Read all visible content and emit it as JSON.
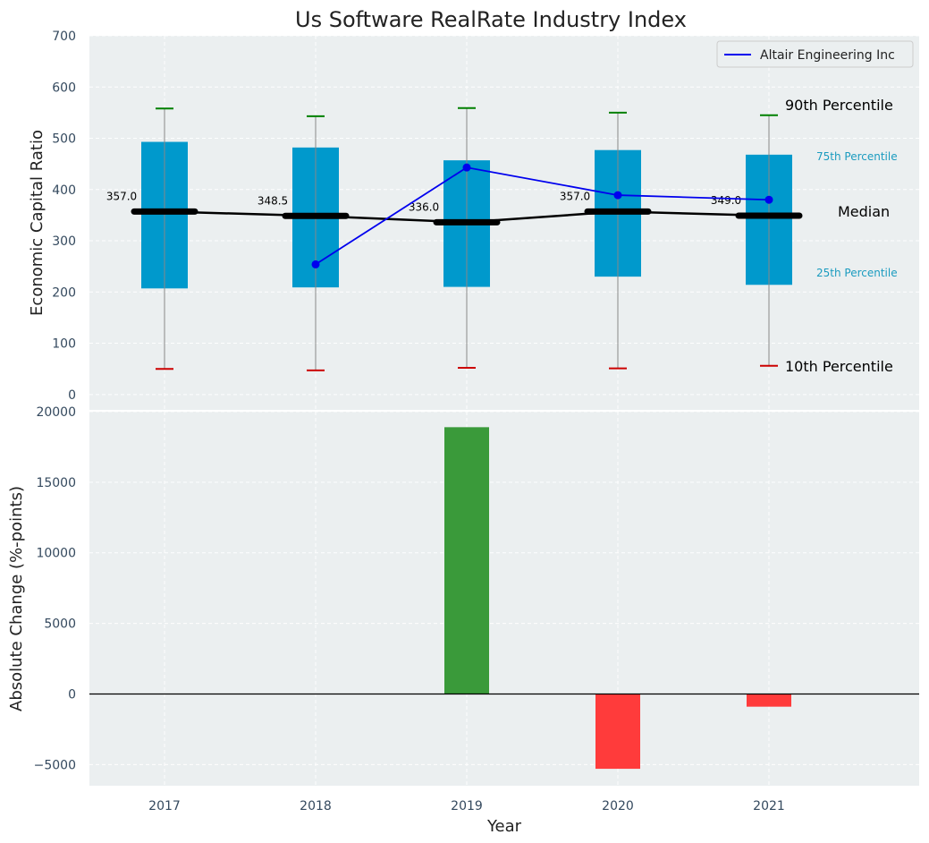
{
  "chart_data": [
    {
      "type": "box",
      "title": "Us Software RealRate Industry Index",
      "ylabel": "Economic Capital Ratio",
      "ylim": [
        -30,
        700
      ],
      "yticks": [
        0,
        100,
        200,
        300,
        400,
        500,
        600,
        700
      ],
      "grid": true,
      "categories": [
        "2017",
        "2018",
        "2019",
        "2020",
        "2021"
      ],
      "boxes": [
        {
          "p10": 50,
          "p25": 207,
          "median": 357.0,
          "p75": 493,
          "p90": 558,
          "median_label": "357.0"
        },
        {
          "p10": 47,
          "p25": 209,
          "median": 348.5,
          "p75": 482,
          "p90": 543,
          "median_label": "348.5"
        },
        {
          "p10": 52,
          "p25": 210,
          "median": 336.0,
          "p75": 457,
          "p90": 559,
          "median_label": "336.0"
        },
        {
          "p10": 51,
          "p25": 230,
          "median": 357.0,
          "p75": 477,
          "p90": 550,
          "median_label": "357.0"
        },
        {
          "p10": 56,
          "p25": 214,
          "median": 349.0,
          "p75": 468,
          "p90": 545,
          "median_label": "349.0"
        }
      ],
      "company_series": {
        "name": "Altair Engineering Inc",
        "x": [
          "2018",
          "2019",
          "2020",
          "2021"
        ],
        "values": [
          254,
          443,
          389,
          380
        ],
        "color": "#0000ee"
      },
      "legend_position": "top-right",
      "annotations": {
        "p90": "90th Percentile",
        "p75": "75th Percentile",
        "median": "Median",
        "p25": "25th Percentile",
        "p10": "10th Percentile"
      },
      "colors": {
        "box": "#0099cc",
        "median_line": "#000000",
        "p90_cap": "#008000",
        "p10_cap": "#cc0000",
        "whisker": "#888888",
        "label_blue": "#1a9bbf"
      }
    },
    {
      "type": "bar",
      "ylabel": "Absolute Change (%-points)",
      "xlabel": "Year",
      "ylim": [
        -6500,
        20000
      ],
      "yticks": [
        -5000,
        0,
        5000,
        10000,
        15000,
        20000
      ],
      "ytick_labels": [
        "−5000",
        "0",
        "5000",
        "10000",
        "15000",
        "20000"
      ],
      "grid": true,
      "categories": [
        "2017",
        "2018",
        "2019",
        "2020",
        "2021"
      ],
      "values": [
        0,
        0,
        18900,
        -5300,
        -900
      ],
      "colors": {
        "positive": "#3a9a3a",
        "negative": "#ff3b3b"
      }
    }
  ]
}
